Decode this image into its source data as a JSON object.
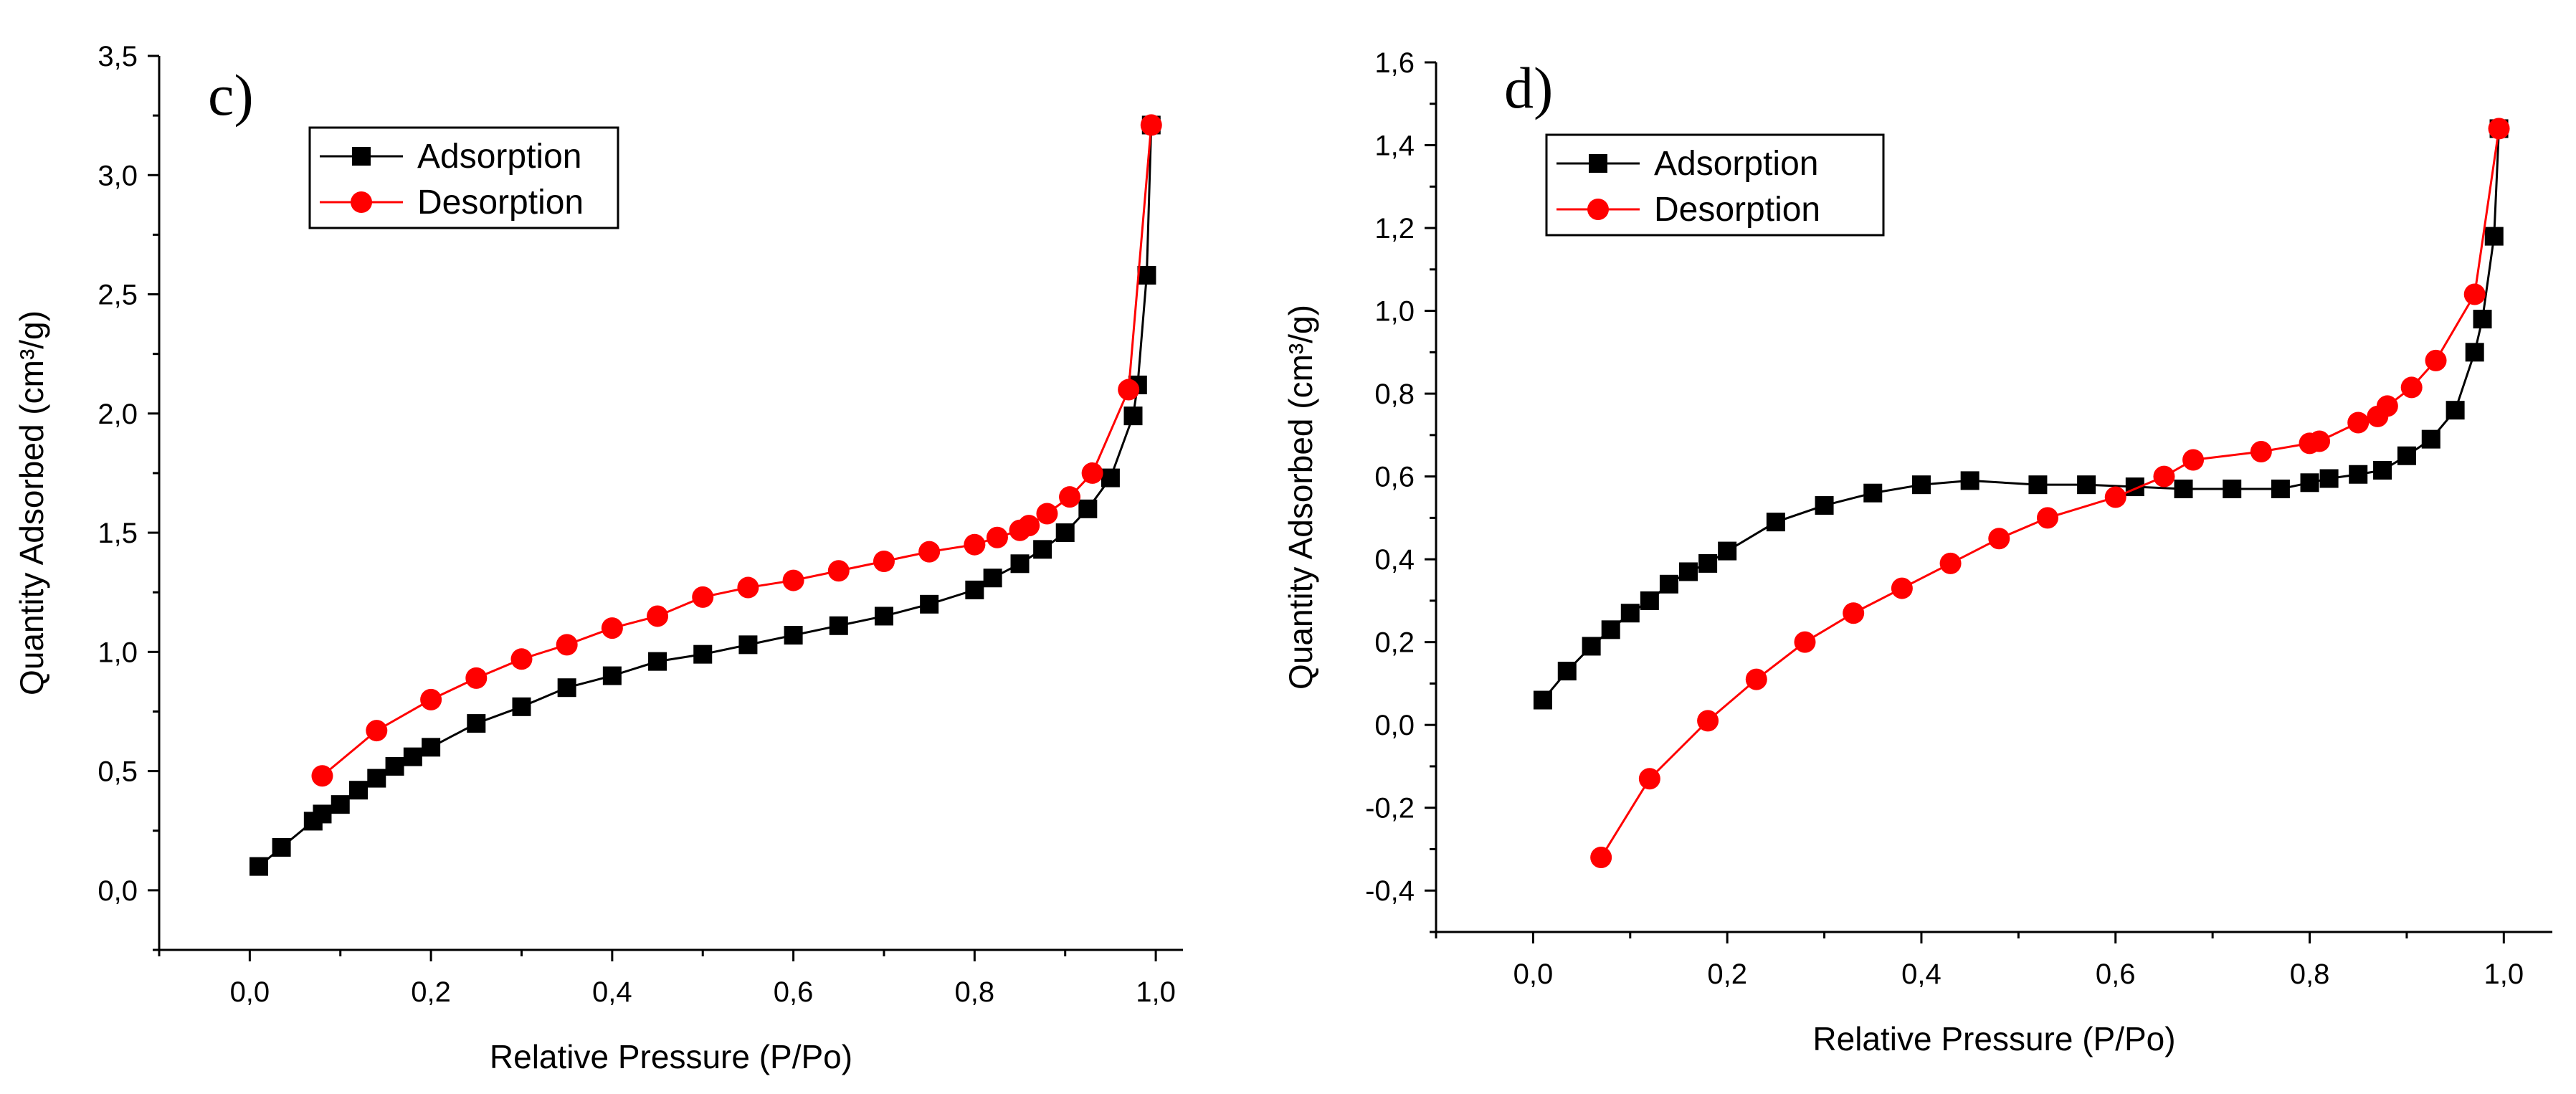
{
  "colors": {
    "adsorption": "#000000",
    "desorption": "#ff0000"
  },
  "chart_data": [
    {
      "type": "line",
      "panel_label": "c)",
      "xlabel": "Relative Pressure (P/Po)",
      "ylabel": "Quantity Adsorbed (cm³/g)",
      "xlim": [
        -0.1,
        1.03
      ],
      "ylim": [
        -0.25,
        3.5
      ],
      "xticks": [
        0.0,
        0.2,
        0.4,
        0.6,
        0.8,
        1.0
      ],
      "xtick_labels": [
        "0,0",
        "0,2",
        "0,4",
        "0,6",
        "0,8",
        "1,0"
      ],
      "yticks": [
        0.0,
        0.5,
        1.0,
        1.5,
        2.0,
        2.5,
        3.0,
        3.5
      ],
      "ytick_labels": [
        "0,0",
        "0,5",
        "1,0",
        "1,5",
        "2,0",
        "2,5",
        "3,0",
        "3,5"
      ],
      "legend_position": "top-left",
      "series": [
        {
          "name": "Adsorption",
          "marker": "square",
          "color": "#000000",
          "x": [
            0.01,
            0.035,
            0.07,
            0.08,
            0.1,
            0.12,
            0.14,
            0.16,
            0.18,
            0.2,
            0.25,
            0.3,
            0.35,
            0.4,
            0.45,
            0.5,
            0.55,
            0.6,
            0.65,
            0.7,
            0.75,
            0.8,
            0.82,
            0.85,
            0.875,
            0.9,
            0.925,
            0.95,
            0.975,
            0.98,
            0.99,
            0.995
          ],
          "y": [
            0.1,
            0.18,
            0.29,
            0.32,
            0.36,
            0.42,
            0.47,
            0.52,
            0.56,
            0.6,
            0.7,
            0.77,
            0.85,
            0.9,
            0.96,
            0.99,
            1.03,
            1.07,
            1.11,
            1.15,
            1.2,
            1.26,
            1.31,
            1.37,
            1.43,
            1.5,
            1.6,
            1.73,
            1.99,
            2.12,
            2.58,
            3.21
          ]
        },
        {
          "name": "Desorption",
          "marker": "circle",
          "color": "#ff0000",
          "x": [
            0.08,
            0.14,
            0.2,
            0.25,
            0.3,
            0.35,
            0.4,
            0.45,
            0.5,
            0.55,
            0.6,
            0.65,
            0.7,
            0.75,
            0.8,
            0.825,
            0.85,
            0.86,
            0.88,
            0.905,
            0.93,
            0.97,
            0.995
          ],
          "y": [
            0.48,
            0.67,
            0.8,
            0.89,
            0.97,
            1.03,
            1.1,
            1.15,
            1.23,
            1.27,
            1.3,
            1.34,
            1.38,
            1.42,
            1.45,
            1.48,
            1.51,
            1.53,
            1.58,
            1.65,
            1.75,
            2.1,
            3.21
          ]
        }
      ]
    },
    {
      "type": "line",
      "panel_label": "d)",
      "xlabel": "Relative Pressure (P/Po)",
      "ylabel": "Quantity Adsorbed (cm³/g)",
      "xlim": [
        -0.1,
        1.05
      ],
      "ylim": [
        -0.5,
        1.6
      ],
      "xticks": [
        0.0,
        0.2,
        0.4,
        0.6,
        0.8,
        1.0
      ],
      "xtick_labels": [
        "0,0",
        "0,2",
        "0,4",
        "0,6",
        "0,8",
        "1,0"
      ],
      "yticks": [
        -0.4,
        -0.2,
        0.0,
        0.2,
        0.4,
        0.6,
        0.8,
        1.0,
        1.2,
        1.4,
        1.6
      ],
      "ytick_labels": [
        "-0,4",
        "-0,2",
        "0,0",
        "0,2",
        "0,4",
        "0,6",
        "0,8",
        "1,0",
        "1,2",
        "1,4",
        "1,6"
      ],
      "legend_position": "top-left",
      "series": [
        {
          "name": "Adsorption",
          "marker": "square",
          "color": "#000000",
          "x": [
            0.01,
            0.035,
            0.06,
            0.08,
            0.1,
            0.12,
            0.14,
            0.16,
            0.18,
            0.2,
            0.25,
            0.3,
            0.35,
            0.4,
            0.45,
            0.52,
            0.57,
            0.62,
            0.67,
            0.72,
            0.77,
            0.8,
            0.82,
            0.85,
            0.875,
            0.9,
            0.925,
            0.95,
            0.97,
            0.978,
            0.99,
            0.995
          ],
          "y": [
            0.06,
            0.13,
            0.19,
            0.23,
            0.27,
            0.3,
            0.34,
            0.37,
            0.39,
            0.42,
            0.49,
            0.53,
            0.56,
            0.58,
            0.59,
            0.58,
            0.58,
            0.575,
            0.57,
            0.57,
            0.57,
            0.585,
            0.595,
            0.605,
            0.615,
            0.65,
            0.69,
            0.76,
            0.9,
            0.98,
            1.18,
            1.44
          ]
        },
        {
          "name": "Desorption",
          "marker": "circle",
          "color": "#ff0000",
          "x": [
            0.07,
            0.12,
            0.18,
            0.23,
            0.28,
            0.33,
            0.38,
            0.43,
            0.48,
            0.53,
            0.6,
            0.65,
            0.68,
            0.75,
            0.8,
            0.81,
            0.85,
            0.87,
            0.88,
            0.905,
            0.93,
            0.97,
            0.995
          ],
          "y": [
            -0.32,
            -0.13,
            0.01,
            0.11,
            0.2,
            0.27,
            0.33,
            0.39,
            0.45,
            0.5,
            0.55,
            0.6,
            0.64,
            0.66,
            0.68,
            0.685,
            0.73,
            0.745,
            0.77,
            0.815,
            0.88,
            1.04,
            1.44
          ]
        }
      ]
    }
  ]
}
